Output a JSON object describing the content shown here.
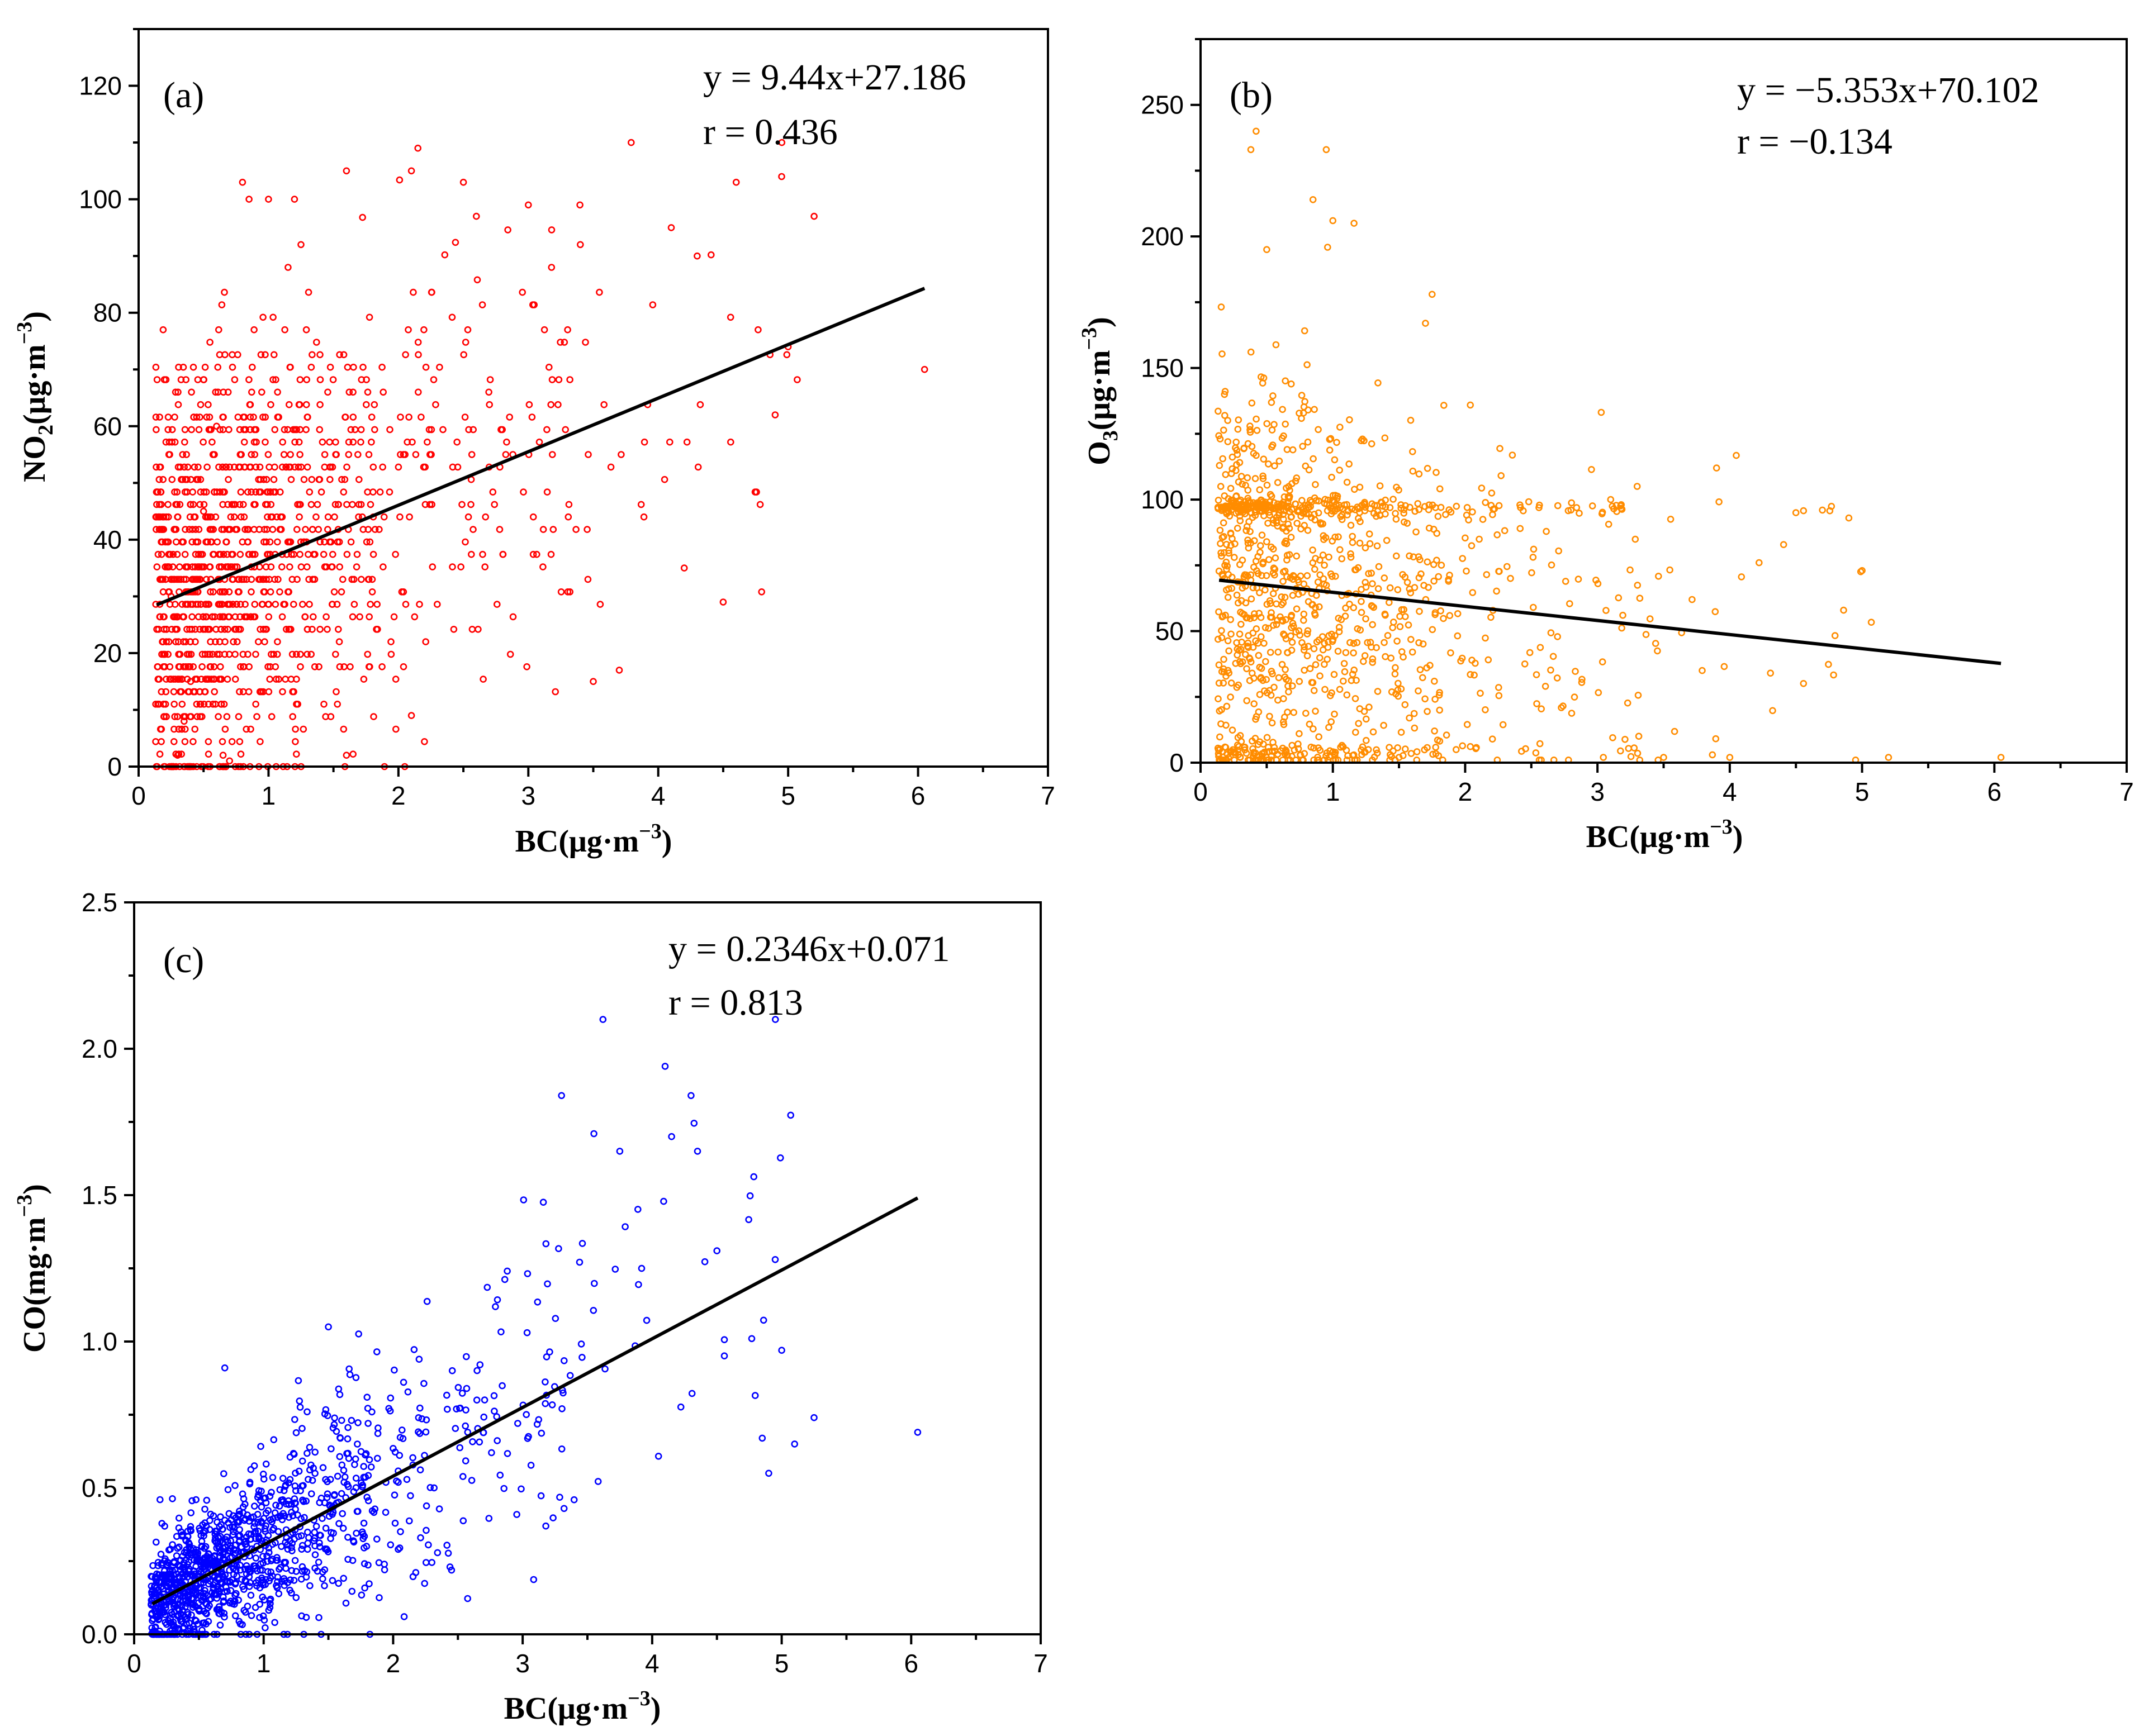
{
  "colors": {
    "panel_a_points": "#ff0000",
    "panel_b_points": "#ff8c00",
    "panel_c_points": "#0000ff",
    "fit_line": "#000000"
  },
  "chart_data": [
    {
      "type": "scatter",
      "panel_label": "(a)",
      "xlabel_base": "BC(μg·m",
      "xlabel_sup": "−3",
      "xlabel_end": ")",
      "ylabel_base": "NO",
      "ylabel_sub": "2",
      "ylabel_mid": "(μg·m",
      "ylabel_sup": "−3",
      "ylabel_end": ")",
      "xlim": [
        0,
        7
      ],
      "ylim": [
        0,
        130
      ],
      "xticks": [
        "0",
        "1",
        "2",
        "3",
        "4",
        "5",
        "6",
        "7"
      ],
      "yticks": [
        "0",
        "20",
        "40",
        "60",
        "80",
        "100",
        "120"
      ],
      "equation": "y = 9.44x+27.186",
      "r_text": "r = 0.436",
      "fit": {
        "slope": 9.44,
        "intercept": 27.186,
        "x_range": [
          0.14,
          6.05
        ]
      },
      "point_color": "#ff0000",
      "n_points_est": 1300,
      "x_distribution": "right-skewed, mostly 0.1–2.5, sparse to 5.2, one outlier at 6.05",
      "y_distribution": "values on a ~2 µg/m3 grid, range 0–109",
      "sample_points": [
        [
          0.3,
          2
        ],
        [
          0.35,
          8
        ],
        [
          0.4,
          15
        ],
        [
          0.25,
          30
        ],
        [
          0.5,
          45
        ],
        [
          0.6,
          60
        ],
        [
          0.8,
          103
        ],
        [
          0.85,
          100
        ],
        [
          1.0,
          100
        ],
        [
          1.2,
          100
        ],
        [
          1.25,
          92
        ],
        [
          1.6,
          105
        ],
        [
          2.1,
          105
        ],
        [
          2.15,
          109
        ],
        [
          2.5,
          103
        ],
        [
          2.6,
          97
        ],
        [
          3.0,
          99
        ],
        [
          3.4,
          92
        ],
        [
          4.1,
          95
        ],
        [
          4.3,
          90
        ],
        [
          4.6,
          103
        ],
        [
          4.95,
          104
        ],
        [
          5.2,
          97
        ],
        [
          5.0,
          74
        ],
        [
          4.9,
          62
        ],
        [
          4.5,
          29
        ],
        [
          4.2,
          35
        ],
        [
          3.7,
          17
        ],
        [
          3.5,
          15
        ],
        [
          6.05,
          70
        ],
        [
          1.6,
          2
        ],
        [
          2.1,
          9
        ],
        [
          0.7,
          1
        ],
        [
          0.65,
          2
        ]
      ]
    },
    {
      "type": "scatter",
      "panel_label": "(b)",
      "xlabel_base": "BC(μg·m",
      "xlabel_sup": "−3",
      "xlabel_end": ")",
      "ylabel_base": "O",
      "ylabel_sub": "3",
      "ylabel_mid": "(μg·m",
      "ylabel_sup": "−3",
      "ylabel_end": ")",
      "xlim": [
        0,
        7
      ],
      "ylim": [
        0,
        275
      ],
      "xticks": [
        "0",
        "1",
        "2",
        "3",
        "4",
        "5",
        "6",
        "7"
      ],
      "yticks": [
        "0",
        "50",
        "100",
        "150",
        "200",
        "250"
      ],
      "equation": "y = −5.353x+70.102",
      "r_text": "r = −0.134",
      "fit": {
        "slope": -5.353,
        "intercept": 70.102,
        "x_range": [
          0.14,
          6.05
        ]
      },
      "point_color": "#ff8c00",
      "n_points_est": 1300,
      "x_distribution": "right-skewed, mostly 0.1–2.5, sparse to 5.2, one outlier at 6.05",
      "y_distribution": "range 0–240, dense near 0–100, clustering near 97",
      "sample_points": [
        [
          0.42,
          240
        ],
        [
          0.38,
          233
        ],
        [
          0.95,
          233
        ],
        [
          0.85,
          214
        ],
        [
          1.0,
          206
        ],
        [
          0.5,
          195
        ],
        [
          1.75,
          178
        ],
        [
          1.7,
          167
        ],
        [
          3.1,
          100
        ],
        [
          3.3,
          105
        ],
        [
          3.9,
          112
        ],
        [
          4.5,
          95
        ],
        [
          4.7,
          96
        ],
        [
          5.0,
          73
        ],
        [
          4.9,
          93
        ],
        [
          6.05,
          2
        ],
        [
          5.2,
          2
        ],
        [
          4.0,
          2
        ],
        [
          3.5,
          2
        ],
        [
          1.5,
          2
        ],
        [
          0.3,
          2
        ]
      ]
    },
    {
      "type": "scatter",
      "panel_label": "(c)",
      "xlabel_base": "BC(μg·m",
      "xlabel_sup": "−3",
      "xlabel_end": ")",
      "ylabel": "CO(mg·m",
      "ylabel_sup": "−3",
      "ylabel_end": ")",
      "xlim": [
        0,
        7
      ],
      "ylim": [
        0,
        2.5
      ],
      "xticks": [
        "0",
        "1",
        "2",
        "3",
        "4",
        "5",
        "6",
        "7"
      ],
      "yticks": [
        "0.0",
        "0.5",
        "1.0",
        "1.5",
        "2.0",
        "2.5"
      ],
      "equation": "y = 0.2346x+0.071",
      "r_text": "r = 0.813",
      "fit": {
        "slope": 0.2346,
        "intercept": 0.071,
        "x_range": [
          0.14,
          6.05
        ]
      },
      "point_color": "#0000ff",
      "n_points_est": 1300,
      "x_distribution": "right-skewed, mostly 0.1–2.5, sparse to 5.2, one outlier at 6.05",
      "y_distribution": "strongly correlated with BC, range 0–2.1",
      "sample_points": [
        [
          3.62,
          2.1
        ],
        [
          4.1,
          1.94
        ],
        [
          4.3,
          1.84
        ],
        [
          3.3,
          1.84
        ],
        [
          3.55,
          1.71
        ],
        [
          3.75,
          1.65
        ],
        [
          4.15,
          1.7
        ],
        [
          4.35,
          1.65
        ],
        [
          4.95,
          1.28
        ],
        [
          4.5,
          1.31
        ],
        [
          4.85,
          0.67
        ],
        [
          4.9,
          0.55
        ],
        [
          5.1,
          0.65
        ],
        [
          5.25,
          0.74
        ],
        [
          6.05,
          0.69
        ],
        [
          5.0,
          0.97
        ],
        [
          0.7,
          0.91
        ],
        [
          1.5,
          1.05
        ],
        [
          0.2,
          0.46
        ],
        [
          0.95,
          0.0
        ],
        [
          0.15,
          0.1
        ],
        [
          0.5,
          0.0
        ]
      ]
    }
  ]
}
